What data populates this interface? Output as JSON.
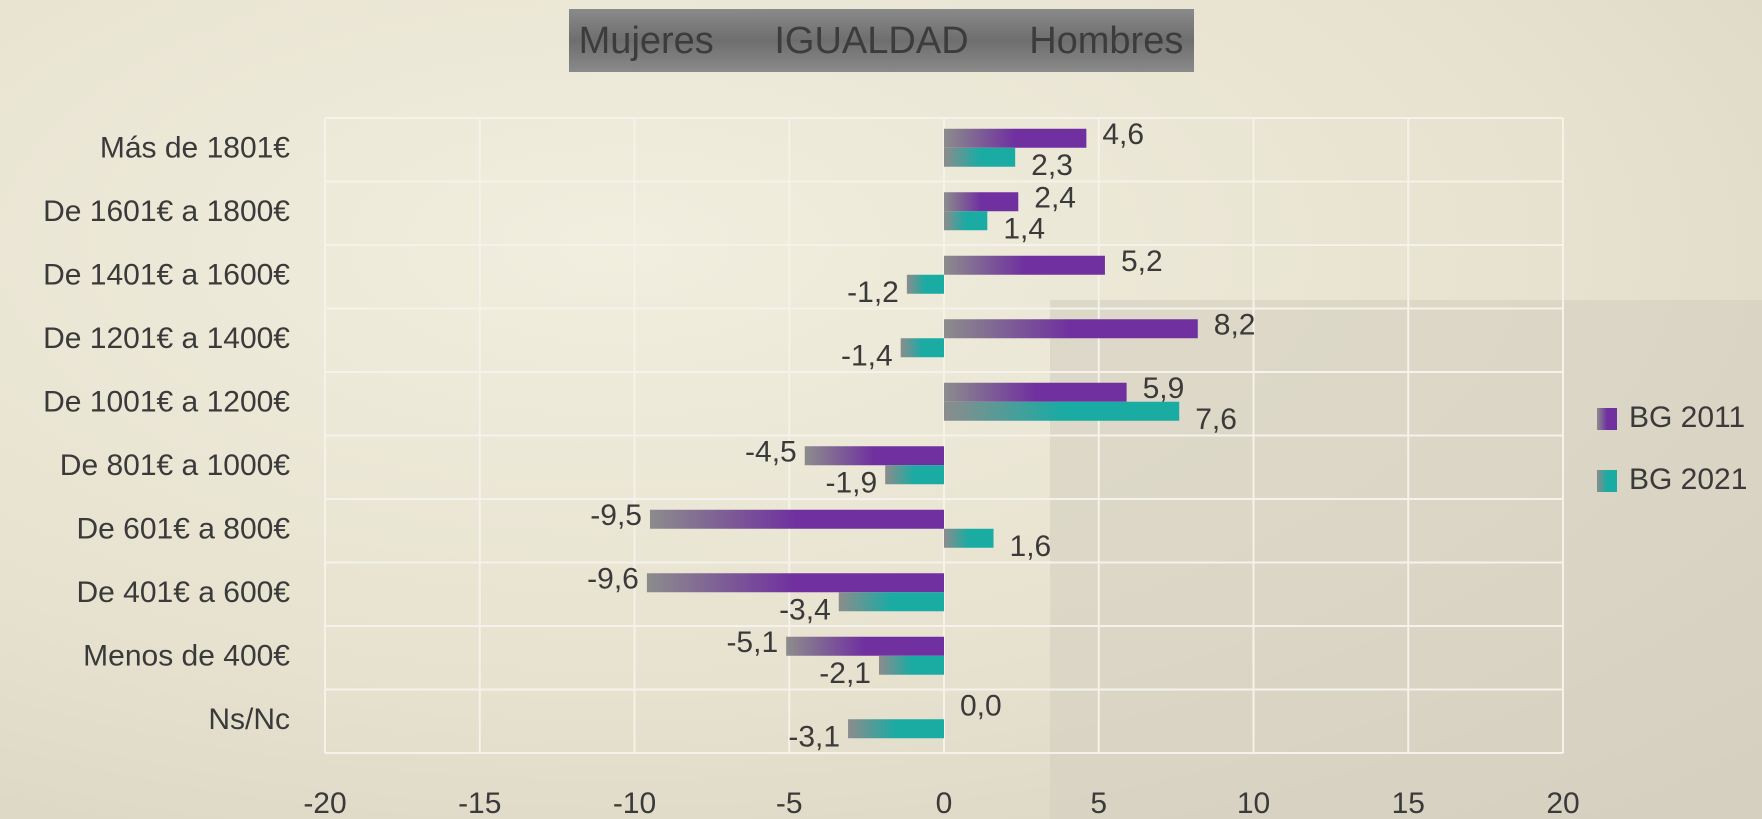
{
  "chart_data": {
    "type": "hbar",
    "title": "Mujeres IGUALDAD Hombres",
    "categories": [
      "Más de 1801€",
      "De 1601€ a 1800€",
      "De 1401€ a 1600€",
      "De 1201€ a 1400€",
      "De 1001€ a 1200€",
      "De 801€ a 1000€",
      "De 601€ a 800€",
      "De 401€ a 600€",
      "Menos de 400€",
      "Ns/Nc"
    ],
    "series": [
      {
        "name": "BG 2011",
        "color": "#7030a0",
        "values": [
          4.6,
          2.4,
          5.2,
          8.2,
          5.9,
          -4.5,
          -9.5,
          -9.6,
          -5.1,
          0.0
        ],
        "value_labels": [
          "4,6",
          "2,4",
          "5,2",
          "8,2",
          "5,9",
          "-4,5",
          "-9,5",
          "-9,6",
          "-5,1",
          "0,0"
        ]
      },
      {
        "name": "BG 2021",
        "color": "#1aaba3",
        "values": [
          2.3,
          1.4,
          -1.2,
          -1.4,
          7.6,
          -1.9,
          1.6,
          -3.4,
          -2.1,
          -3.1
        ],
        "value_labels": [
          "2,3",
          "1,4",
          "-1,2",
          "-1,4",
          "7,6",
          "-1,9",
          "1,6",
          "-3,4",
          "-2,1",
          "-3,1"
        ]
      }
    ],
    "xlim": [
      -20,
      20
    ],
    "xticks": [
      -20,
      -15,
      -10,
      -5,
      0,
      5,
      10,
      15,
      20
    ],
    "grid": true,
    "legend": "right"
  }
}
